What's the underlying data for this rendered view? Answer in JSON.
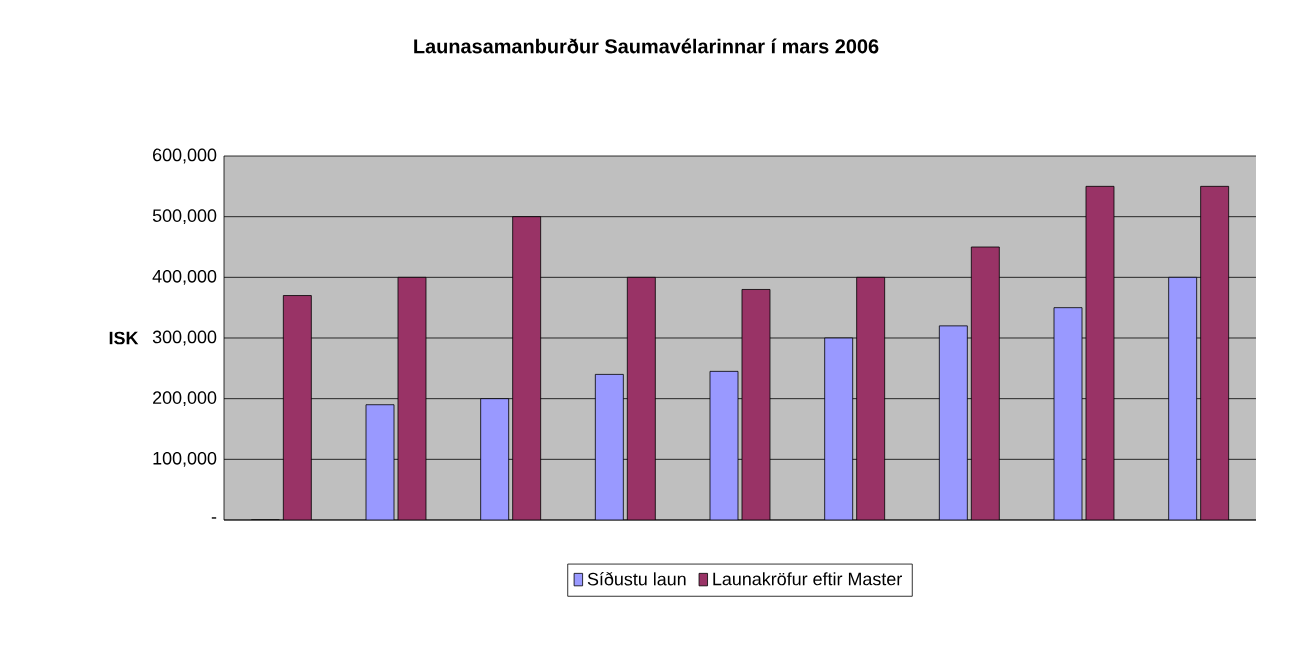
{
  "chart_data": {
    "type": "bar",
    "title": "Launasamanburður Saumavélarinnar í mars 2006",
    "ylabel": "ISK",
    "categories": [
      null,
      null,
      null,
      null,
      null,
      null,
      null,
      null,
      null
    ],
    "series": [
      {
        "name": "Síðustu laun",
        "color": "#9999ff",
        "values": [
          0,
          190000,
          200000,
          240000,
          245000,
          300000,
          320000,
          350000,
          400000
        ]
      },
      {
        "name": "Launakröfur eftir Master",
        "color": "#993366",
        "values": [
          370000,
          400000,
          500000,
          400000,
          380000,
          400000,
          450000,
          550000,
          550000
        ]
      }
    ],
    "ylim": [
      0,
      600000
    ],
    "yticks": [
      {
        "value": 0,
        "label": "-"
      },
      {
        "value": 100000,
        "label": "100,000"
      },
      {
        "value": 200000,
        "label": "200,000"
      },
      {
        "value": 300000,
        "label": "300,000"
      },
      {
        "value": 400000,
        "label": "400,000"
      },
      {
        "value": 500000,
        "label": "500,000"
      },
      {
        "value": 600000,
        "label": "600,000"
      }
    ],
    "grid": "y",
    "legend": "bottom"
  }
}
